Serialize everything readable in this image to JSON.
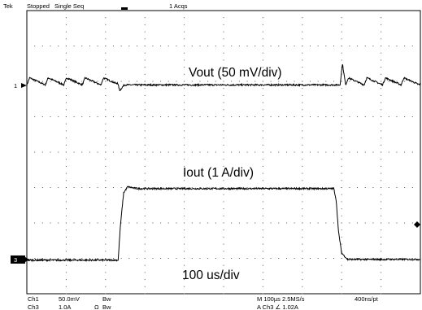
{
  "header": {
    "brand": "Tek",
    "state": "Stopped",
    "mode": "Single Seq",
    "acqs": "1 Acqs"
  },
  "channel_markers": {
    "ch1": "1",
    "ch3": "3"
  },
  "footer": {
    "ch1_label": "Ch1",
    "ch1_scale": "50.0mV",
    "ch1_bw": "Bw",
    "ch3_label": "Ch3",
    "ch3_scale": "1.0A",
    "ch3_coupling": "Ω",
    "ch3_bw": "Bw",
    "timebase": "M 100µs 2.5MS/s",
    "record": "400ns/pt",
    "trigger": "A  Ch3  ∠  1.02A"
  },
  "chart_data": {
    "type": "line",
    "title": "",
    "xlabel": "100 us/div",
    "ylabel": "",
    "x_unit": "us",
    "xlim": [
      0,
      1000
    ],
    "y_divisions": 8,
    "grid": true,
    "annotations": [
      "Vout (50 mV/div)",
      "Iout (1 A/div)",
      "100 us/div"
    ],
    "series": [
      {
        "name": "Vout (50 mV/div)",
        "channel": 1,
        "unit": "mV",
        "color": "#000000",
        "description_points": [
          [
            0,
            0
          ],
          [
            30,
            8
          ],
          [
            78,
            0
          ],
          [
            117,
            10
          ],
          [
            128,
            0
          ],
          [
            200,
            2
          ],
          [
            213,
            6
          ],
          [
            236,
            -8
          ],
          [
            248,
            0
          ],
          [
            500,
            0
          ],
          [
            700,
            0
          ],
          [
            796,
            0
          ],
          [
            802,
            30
          ],
          [
            808,
            0
          ],
          [
            830,
            10
          ],
          [
            858,
            0
          ],
          [
            877,
            10
          ],
          [
            900,
            0
          ],
          [
            925,
            10
          ],
          [
            950,
            0
          ],
          [
            975,
            10
          ],
          [
            1000,
            5
          ]
        ],
        "sawtooth_period_us": 47,
        "sawtooth_amplitude_mv": 10,
        "disturbance_us": [
          232,
          796
        ]
      },
      {
        "name": "Iout (1 A/div)",
        "channel": 3,
        "unit": "A",
        "color": "#000000",
        "points": [
          [
            0,
            0
          ],
          [
            232,
            0
          ],
          [
            238,
            1.0
          ],
          [
            246,
            1.9
          ],
          [
            256,
            2.07
          ],
          [
            280,
            2.02
          ],
          [
            500,
            2.02
          ],
          [
            780,
            2.02
          ],
          [
            786,
            1.7
          ],
          [
            792,
            0.8
          ],
          [
            800,
            0.2
          ],
          [
            815,
            0.02
          ],
          [
            1000,
            0.02
          ]
        ]
      }
    ]
  }
}
